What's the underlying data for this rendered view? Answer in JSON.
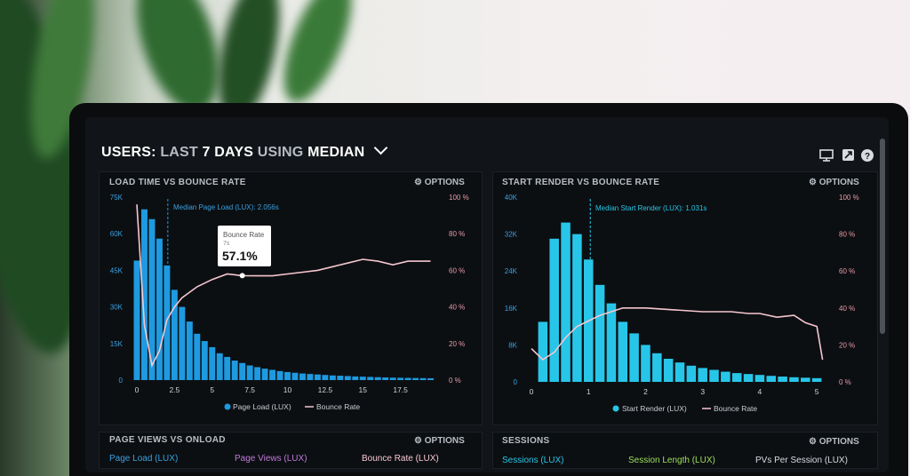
{
  "header": {
    "prefix": "USERS:",
    "range_a": "LAST",
    "range_b": "7 DAYS",
    "using": "USING",
    "metric": "MEDIAN"
  },
  "panels": {
    "left": {
      "title": "LOAD TIME VS BOUNCE RATE",
      "options": "OPTIONS",
      "median_label": "Median Page Load (LUX): 2.056s",
      "tooltip": {
        "label": "Bounce Rate",
        "sub": "7s",
        "value": "57.1%"
      },
      "legend": {
        "bar": "Page Load (LUX)",
        "line": "Bounce Rate"
      }
    },
    "right": {
      "title": "START RENDER VS BOUNCE RATE",
      "options": "OPTIONS",
      "median_label": "Median Start Render (LUX): 1.031s",
      "legend": {
        "bar": "Start Render (LUX)",
        "line": "Bounce Rate"
      }
    },
    "bottom_left": {
      "title": "PAGE VIEWS VS ONLOAD",
      "options": "OPTIONS",
      "cols": [
        "Page Load (LUX)",
        "Page Views (LUX)",
        "Bounce Rate (LUX)"
      ]
    },
    "bottom_right": {
      "title": "SESSIONS",
      "options": "OPTIONS",
      "cols": [
        "Sessions (LUX)",
        "Session Length (LUX)",
        "PVs Per Session (LUX)"
      ]
    }
  },
  "icons": [
    "monitor-icon",
    "export-icon",
    "help-icon",
    "gear-icon",
    "chevron-down-icon"
  ],
  "colors": {
    "bar_left": "#1e9ae0",
    "bar_right": "#27c6e8",
    "line": "#f5c7cf",
    "axis_right": "#e89aa8",
    "axis_left": "#3aa0e0"
  },
  "chart_data": [
    {
      "type": "bar",
      "title": "LOAD TIME VS BOUNCE RATE",
      "x_ticks": [
        "0",
        "2.5",
        "5",
        "7.5",
        "10",
        "12.5",
        "15",
        "17.5"
      ],
      "y_ticks": [
        "0",
        "15K",
        "30K",
        "45K",
        "60K",
        "75K"
      ],
      "y2_ticks": [
        "0 %",
        "20 %",
        "40 %",
        "60 %",
        "80 %",
        "100 %"
      ],
      "xlim": [
        0,
        20
      ],
      "ylim": [
        0,
        75000
      ],
      "y2lim": [
        0,
        100
      ],
      "median_x": 2.056,
      "series": [
        {
          "name": "Page Load (LUX)",
          "type": "bar",
          "x": [
            0,
            0.5,
            1,
            1.5,
            2,
            2.5,
            3,
            3.5,
            4,
            4.5,
            5,
            5.5,
            6,
            6.5,
            7,
            7.5,
            8,
            8.5,
            9,
            9.5,
            10,
            10.5,
            11,
            11.5,
            12,
            12.5,
            13,
            13.5,
            14,
            14.5,
            15,
            15.5,
            16,
            16.5,
            17,
            17.5,
            18,
            18.5,
            19,
            19.5
          ],
          "values": [
            49000,
            70000,
            66000,
            58000,
            47000,
            37000,
            30000,
            24000,
            19000,
            16000,
            13500,
            11000,
            9500,
            8000,
            7000,
            6000,
            5300,
            4700,
            4200,
            3700,
            3300,
            3000,
            2700,
            2500,
            2300,
            2100,
            1900,
            1800,
            1650,
            1500,
            1400,
            1300,
            1200,
            1100,
            1000,
            950,
            900,
            850,
            800,
            750
          ]
        },
        {
          "name": "Bounce Rate",
          "type": "line",
          "axis": "y2",
          "x": [
            0,
            0.5,
            1,
            1.5,
            2,
            2.5,
            3,
            4,
            5,
            6,
            7,
            8,
            9,
            10,
            11,
            12,
            13,
            14,
            15,
            16,
            17,
            18,
            19.5
          ],
          "values": [
            96,
            30,
            8,
            16,
            33,
            40,
            45,
            51,
            55,
            58,
            57.1,
            57,
            57,
            58,
            59,
            60,
            62,
            64,
            66,
            65,
            63,
            65,
            65
          ]
        }
      ]
    },
    {
      "type": "bar",
      "title": "START RENDER VS BOUNCE RATE",
      "x_ticks": [
        "0",
        "1",
        "2",
        "3",
        "4",
        "5"
      ],
      "y_ticks": [
        "0",
        "8K",
        "16K",
        "24K",
        "32K",
        "40K"
      ],
      "y2_ticks": [
        "0 %",
        "20 %",
        "40 %",
        "60 %",
        "80 %",
        "100 %"
      ],
      "xlim": [
        0,
        5.2
      ],
      "ylim": [
        0,
        40000
      ],
      "y2lim": [
        0,
        100
      ],
      "median_x": 1.031,
      "series": [
        {
          "name": "Start Render (LUX)",
          "type": "bar",
          "x": [
            0.2,
            0.4,
            0.6,
            0.8,
            1.0,
            1.2,
            1.4,
            1.6,
            1.8,
            2.0,
            2.2,
            2.4,
            2.6,
            2.8,
            3.0,
            3.2,
            3.4,
            3.6,
            3.8,
            4.0,
            4.2,
            4.4,
            4.6,
            4.8,
            5.0
          ],
          "values": [
            13000,
            31000,
            34500,
            32000,
            26500,
            21000,
            17000,
            13000,
            10500,
            8000,
            6200,
            5000,
            4200,
            3500,
            3000,
            2600,
            2200,
            1900,
            1700,
            1500,
            1300,
            1150,
            1000,
            900,
            800
          ]
        },
        {
          "name": "Bounce Rate",
          "type": "line",
          "axis": "y2",
          "x": [
            0,
            0.2,
            0.4,
            0.6,
            0.8,
            1.0,
            1.2,
            1.4,
            1.6,
            2.0,
            2.5,
            3.0,
            3.5,
            3.8,
            4.0,
            4.3,
            4.6,
            4.8,
            5.0,
            5.1
          ],
          "values": [
            18,
            12,
            16,
            24,
            30,
            33,
            36,
            38,
            40,
            40,
            39,
            38,
            38,
            37,
            37,
            35,
            36,
            32,
            30,
            12
          ]
        }
      ]
    }
  ]
}
